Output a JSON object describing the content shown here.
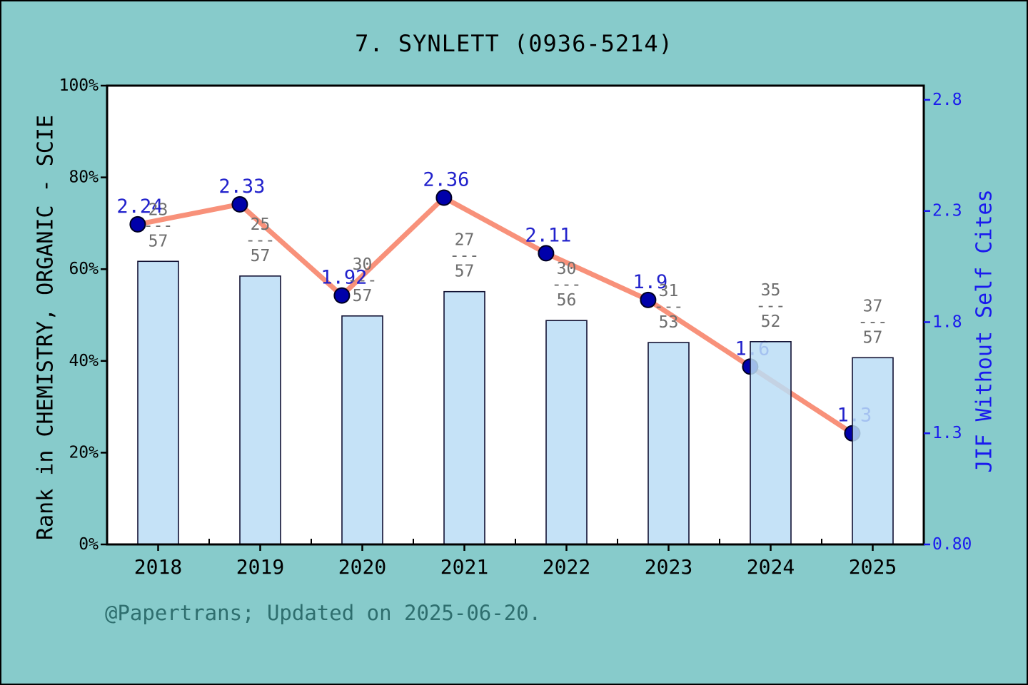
{
  "title": "7. SYNLETT (0936-5214)",
  "footer": "@Papertrans; Updated on 2025-06-20.",
  "colors": {
    "background": "#87CBCB",
    "plot_background": "#FFFFFF",
    "axis": "#000000",
    "bar_fill": "#BBDDF6",
    "bar_edge": "#111133",
    "line": "#F8917A",
    "marker": "#0000AA",
    "marker_edge": "#000022",
    "point_label": "#2222CC",
    "fraction_label": "#6E6E6E",
    "right_axis_text": "#1A1AEE",
    "footer_text": "#2E6E6E"
  },
  "left_axis": {
    "label": "Rank in CHEMISTRY, ORGANIC - SCIE",
    "tick_labels": [
      "0%",
      "20%",
      "40%",
      "60%",
      "80%",
      "100%"
    ],
    "tick_values": [
      0,
      20,
      40,
      60,
      80,
      100
    ],
    "range": [
      0,
      100
    ]
  },
  "right_axis": {
    "label": "JIF Without Self Cites",
    "tick_labels": [
      "0.80",
      "1.3",
      "1.8",
      "2.3",
      "2.8"
    ],
    "tick_values": [
      0.8,
      1.3,
      1.8,
      2.3,
      2.8
    ],
    "range": [
      0.8,
      2.864
    ]
  },
  "chart_data": {
    "type": "combo-bar-line",
    "title": "7. SYNLETT (0936-5214)",
    "categories": [
      "2018",
      "2019",
      "2020",
      "2021",
      "2022",
      "2023",
      "2024",
      "2025"
    ],
    "xlabel": "",
    "ylabel_left": "Rank in CHEMISTRY, ORGANIC - SCIE",
    "ylabel_right": "JIF Without Self Cites",
    "ylim_left": [
      0,
      100
    ],
    "ylim_right": [
      0.8,
      2.864
    ],
    "grid": false,
    "legend": false,
    "series": [
      {
        "name": "Rank in CHEMISTRY, ORGANIC - SCIE",
        "type": "bar",
        "axis": "left",
        "unit": "percent",
        "values": [
          61.7,
          58.5,
          49.8,
          55.1,
          48.8,
          44.0,
          44.2,
          40.7
        ],
        "rank_labels": [
          "23/57",
          "25/57",
          "30/57",
          "27/57",
          "30/56",
          "31/53",
          "35/52",
          "37/57"
        ]
      },
      {
        "name": "JIF Without Self Cites",
        "type": "line",
        "axis": "right",
        "values": [
          2.24,
          2.33,
          1.92,
          2.36,
          2.11,
          1.9,
          1.6,
          1.3
        ],
        "point_labels": [
          "2.24",
          "2.33",
          "1.92",
          "2.36",
          "2.11",
          "1.9",
          "1.6",
          "1.3"
        ]
      }
    ]
  }
}
